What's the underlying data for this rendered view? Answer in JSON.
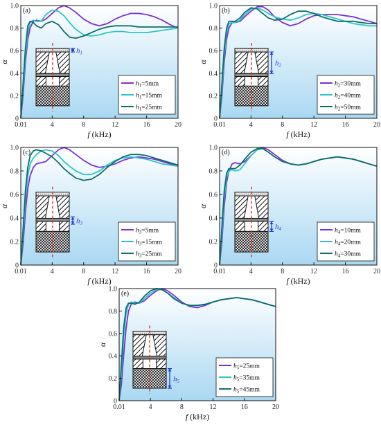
{
  "chart_data": [
    {
      "panel": "(a)",
      "type": "line",
      "xlabel": "f (kHz)",
      "ylabel": "α",
      "xlim": [
        0.01,
        20
      ],
      "ylim": [
        0,
        1.0
      ],
      "xticks": [
        "0.01",
        "4",
        "8",
        "12",
        "16",
        "20"
      ],
      "yticks": [
        "0",
        "0.2",
        "0.4",
        "0.6",
        "0.8",
        "1.0"
      ],
      "inset_label": "h1",
      "legend_placement": "bottom-right",
      "series": [
        {
          "name": "h1=5mm",
          "color": "#7a2fd6",
          "x": [
            0.01,
            0.3,
            0.6,
            0.9,
            1.2,
            1.6,
            2.0,
            2.6,
            3.2,
            4.0,
            4.8,
            5.5,
            6.2,
            7.0,
            8.0,
            9.0,
            10.0,
            11.0,
            12.0,
            13.0,
            14.0,
            15.0,
            16.0,
            17.0,
            18.0,
            19.0,
            20.0
          ],
          "y": [
            0.0,
            0.2,
            0.5,
            0.7,
            0.8,
            0.86,
            0.87,
            0.86,
            0.88,
            0.93,
            0.98,
            1.0,
            0.98,
            0.94,
            0.88,
            0.84,
            0.82,
            0.84,
            0.88,
            0.91,
            0.93,
            0.93,
            0.92,
            0.9,
            0.87,
            0.83,
            0.8
          ]
        },
        {
          "name": "h1=15mm",
          "color": "#2ec4c4",
          "x": [
            0.01,
            0.3,
            0.6,
            0.9,
            1.2,
            1.6,
            2.0,
            2.6,
            3.2,
            4.0,
            4.8,
            5.5,
            6.2,
            7.0,
            8.0,
            9.0,
            10.0,
            11.0,
            12.0,
            13.0,
            14.0,
            15.0,
            16.0,
            17.0,
            18.0,
            19.0,
            20.0
          ],
          "y": [
            0.0,
            0.25,
            0.55,
            0.76,
            0.85,
            0.87,
            0.86,
            0.86,
            0.92,
            0.96,
            0.95,
            0.91,
            0.85,
            0.79,
            0.74,
            0.73,
            0.74,
            0.76,
            0.77,
            0.77,
            0.76,
            0.76,
            0.76,
            0.77,
            0.78,
            0.79,
            0.8
          ]
        },
        {
          "name": "h1=25mm",
          "color": "#0e6e6a",
          "x": [
            0.01,
            0.3,
            0.6,
            0.9,
            1.2,
            1.6,
            2.0,
            2.6,
            3.2,
            4.0,
            4.8,
            5.5,
            6.2,
            7.0,
            8.0,
            9.0,
            10.0,
            11.0,
            12.0,
            13.0,
            14.0,
            15.0,
            16.0,
            17.0,
            18.0,
            19.0,
            20.0
          ],
          "y": [
            0.0,
            0.3,
            0.62,
            0.82,
            0.86,
            0.85,
            0.82,
            0.8,
            0.84,
            0.86,
            0.83,
            0.77,
            0.72,
            0.71,
            0.73,
            0.76,
            0.79,
            0.81,
            0.82,
            0.82,
            0.82,
            0.81,
            0.81,
            0.81,
            0.81,
            0.81,
            0.81
          ]
        }
      ]
    },
    {
      "panel": "(b)",
      "type": "line",
      "xlabel": "f (kHz)",
      "ylabel": "α",
      "xlim": [
        0.01,
        20
      ],
      "ylim": [
        0,
        1.0
      ],
      "xticks": [
        "0.01",
        "4",
        "8",
        "12",
        "16",
        "20"
      ],
      "yticks": [
        "0",
        "0.2",
        "0.4",
        "0.6",
        "0.8",
        "1.0"
      ],
      "inset_label": "h2",
      "legend_placement": "bottom-right",
      "series": [
        {
          "name": "h2=30mm",
          "color": "#7a2fd6",
          "x": [
            0.01,
            0.3,
            0.6,
            0.9,
            1.2,
            1.6,
            2.0,
            2.6,
            3.2,
            4.0,
            4.8,
            5.5,
            6.2,
            7.0,
            8.0,
            9.0,
            10.0,
            11.0,
            12.0,
            13.0,
            14.0,
            15.0,
            16.0,
            17.0,
            18.0,
            19.0,
            20.0
          ],
          "y": [
            0.0,
            0.2,
            0.5,
            0.7,
            0.8,
            0.85,
            0.85,
            0.86,
            0.9,
            0.95,
            0.99,
            0.99,
            0.96,
            0.9,
            0.85,
            0.82,
            0.84,
            0.88,
            0.91,
            0.92,
            0.92,
            0.92,
            0.91,
            0.9,
            0.88,
            0.86,
            0.84
          ]
        },
        {
          "name": "h2=40mm",
          "color": "#2ec4c4",
          "x": [
            0.01,
            0.3,
            0.6,
            0.9,
            1.2,
            1.6,
            2.0,
            2.6,
            3.2,
            4.0,
            4.8,
            5.5,
            6.2,
            7.0,
            8.0,
            9.0,
            10.0,
            11.0,
            12.0,
            13.0,
            14.0,
            15.0,
            16.0,
            17.0,
            18.0,
            19.0,
            20.0
          ],
          "y": [
            0.0,
            0.25,
            0.56,
            0.76,
            0.84,
            0.85,
            0.85,
            0.87,
            0.92,
            0.97,
            0.98,
            0.96,
            0.93,
            0.9,
            0.88,
            0.87,
            0.89,
            0.92,
            0.93,
            0.92,
            0.9,
            0.88,
            0.86,
            0.84,
            0.83,
            0.82,
            0.82
          ]
        },
        {
          "name": "h2=50mm",
          "color": "#0e6e6a",
          "x": [
            0.01,
            0.3,
            0.6,
            0.9,
            1.2,
            1.6,
            2.0,
            2.6,
            3.2,
            4.0,
            4.8,
            5.5,
            6.2,
            7.0,
            8.0,
            9.0,
            10.0,
            11.0,
            12.0,
            13.0,
            14.0,
            15.0,
            16.0,
            17.0,
            18.0,
            19.0,
            20.0
          ],
          "y": [
            0.0,
            0.3,
            0.62,
            0.8,
            0.86,
            0.86,
            0.86,
            0.89,
            0.94,
            0.98,
            0.97,
            0.93,
            0.89,
            0.87,
            0.88,
            0.92,
            0.95,
            0.95,
            0.93,
            0.9,
            0.88,
            0.86,
            0.86,
            0.86,
            0.85,
            0.84,
            0.84
          ]
        }
      ]
    },
    {
      "panel": "(c)",
      "type": "line",
      "xlabel": "f (kHz)",
      "ylabel": "α",
      "xlim": [
        0.01,
        20
      ],
      "ylim": [
        0,
        1.0
      ],
      "xticks": [
        "0.01",
        "4",
        "8",
        "12",
        "16",
        "20"
      ],
      "yticks": [
        "0",
        "0.2",
        "0.4",
        "0.6",
        "0.8",
        "1.0"
      ],
      "inset_label": "h3",
      "legend_placement": "bottom-right",
      "series": [
        {
          "name": "h3=5mm",
          "color": "#7a2fd6",
          "x": [
            0.01,
            0.3,
            0.6,
            0.9,
            1.2,
            1.6,
            2.0,
            2.6,
            3.2,
            4.0,
            4.8,
            5.5,
            6.2,
            7.0,
            8.0,
            9.0,
            10.0,
            11.0,
            12.0,
            13.0,
            14.0,
            15.0,
            16.0,
            17.0,
            18.0,
            19.0,
            20.0
          ],
          "y": [
            0.0,
            0.18,
            0.45,
            0.65,
            0.76,
            0.83,
            0.86,
            0.87,
            0.88,
            0.93,
            0.98,
            1.0,
            0.98,
            0.94,
            0.89,
            0.85,
            0.83,
            0.84,
            0.86,
            0.89,
            0.91,
            0.92,
            0.91,
            0.9,
            0.88,
            0.86,
            0.84
          ]
        },
        {
          "name": "h3=15mm",
          "color": "#2ec4c4",
          "x": [
            0.01,
            0.3,
            0.6,
            0.9,
            1.2,
            1.6,
            2.0,
            2.6,
            3.2,
            4.0,
            4.8,
            5.5,
            6.2,
            7.0,
            8.0,
            9.0,
            10.0,
            11.0,
            12.0,
            13.0,
            14.0,
            15.0,
            16.0,
            17.0,
            18.0,
            19.0,
            20.0
          ],
          "y": [
            0.0,
            0.25,
            0.55,
            0.76,
            0.86,
            0.91,
            0.94,
            0.97,
            0.98,
            0.97,
            0.93,
            0.88,
            0.84,
            0.8,
            0.77,
            0.77,
            0.8,
            0.85,
            0.89,
            0.91,
            0.92,
            0.91,
            0.9,
            0.88,
            0.86,
            0.85,
            0.84
          ]
        },
        {
          "name": "h3=25mm",
          "color": "#0e6e6a",
          "x": [
            0.01,
            0.3,
            0.6,
            0.9,
            1.2,
            1.6,
            2.0,
            2.6,
            3.2,
            4.0,
            4.8,
            5.5,
            6.2,
            7.0,
            8.0,
            9.0,
            10.0,
            11.0,
            12.0,
            13.0,
            14.0,
            15.0,
            16.0,
            17.0,
            18.0,
            19.0,
            20.0
          ],
          "y": [
            0.0,
            0.3,
            0.63,
            0.83,
            0.93,
            0.97,
            0.98,
            0.97,
            0.95,
            0.92,
            0.87,
            0.82,
            0.78,
            0.74,
            0.72,
            0.73,
            0.77,
            0.83,
            0.88,
            0.92,
            0.94,
            0.94,
            0.93,
            0.91,
            0.89,
            0.87,
            0.85
          ]
        }
      ]
    },
    {
      "panel": "(d)",
      "type": "line",
      "xlabel": "f (kHz)",
      "ylabel": "α",
      "xlim": [
        0.01,
        20
      ],
      "ylim": [
        0,
        1.0
      ],
      "xticks": [
        "0.01",
        "4",
        "8",
        "12",
        "16",
        "20"
      ],
      "yticks": [
        "0",
        "0.2",
        "0.4",
        "0.6",
        "0.8",
        "1.0"
      ],
      "inset_label": "h4",
      "legend_placement": "bottom-right",
      "series": [
        {
          "name": "h4=10mm",
          "color": "#7a2fd6",
          "x": [
            0.01,
            0.3,
            0.6,
            0.9,
            1.2,
            1.6,
            2.0,
            2.6,
            3.2,
            4.0,
            4.8,
            5.5,
            6.2,
            7.0,
            8.0,
            9.0,
            10.0,
            11.0,
            12.0,
            13.0,
            14.0,
            15.0,
            16.0,
            17.0,
            18.0,
            19.0,
            20.0
          ],
          "y": [
            0.0,
            0.2,
            0.5,
            0.7,
            0.8,
            0.86,
            0.87,
            0.86,
            0.88,
            0.93,
            0.98,
            1.0,
            0.98,
            0.94,
            0.89,
            0.86,
            0.85,
            0.86,
            0.88,
            0.9,
            0.91,
            0.92,
            0.91,
            0.9,
            0.88,
            0.86,
            0.84
          ]
        },
        {
          "name": "h4=20mm",
          "color": "#2ec4c4",
          "x": [
            0.01,
            0.3,
            0.6,
            0.9,
            1.2,
            1.6,
            2.0,
            2.6,
            3.2,
            4.0,
            4.8,
            5.5,
            6.2,
            7.0,
            8.0,
            9.0,
            10.0,
            11.0,
            12.0,
            13.0,
            14.0,
            15.0,
            16.0,
            17.0,
            18.0,
            19.0,
            20.0
          ],
          "y": [
            0.0,
            0.26,
            0.57,
            0.74,
            0.8,
            0.81,
            0.8,
            0.81,
            0.86,
            0.93,
            0.98,
            0.99,
            0.96,
            0.92,
            0.88,
            0.86,
            0.85,
            0.86,
            0.88,
            0.9,
            0.91,
            0.92,
            0.91,
            0.9,
            0.88,
            0.86,
            0.84
          ]
        },
        {
          "name": "h4=30mm",
          "color": "#0e6e6a",
          "x": [
            0.01,
            0.3,
            0.6,
            0.9,
            1.2,
            1.6,
            2.0,
            2.6,
            3.2,
            4.0,
            4.8,
            5.5,
            6.2,
            7.0,
            8.0,
            9.0,
            10.0,
            11.0,
            12.0,
            13.0,
            14.0,
            15.0,
            16.0,
            17.0,
            18.0,
            19.0,
            20.0
          ],
          "y": [
            0.0,
            0.32,
            0.63,
            0.78,
            0.82,
            0.82,
            0.82,
            0.85,
            0.9,
            0.96,
            0.99,
            0.99,
            0.96,
            0.92,
            0.88,
            0.86,
            0.85,
            0.86,
            0.88,
            0.9,
            0.91,
            0.92,
            0.91,
            0.9,
            0.88,
            0.86,
            0.84
          ]
        }
      ]
    },
    {
      "panel": "(e)",
      "type": "line",
      "xlabel": "f (kHz)",
      "ylabel": "α",
      "xlim": [
        0.01,
        20
      ],
      "ylim": [
        0,
        1.0
      ],
      "xticks": [
        "0.01",
        "4",
        "8",
        "12",
        "16",
        "20"
      ],
      "yticks": [
        "0",
        "0.2",
        "0.4",
        "0.6",
        "0.8",
        "1.0"
      ],
      "inset_label": "h5",
      "legend_placement": "bottom-right",
      "series": [
        {
          "name": "h5=25mm",
          "color": "#7a2fd6",
          "x": [
            0.01,
            0.3,
            0.6,
            0.9,
            1.2,
            1.6,
            2.0,
            2.6,
            3.2,
            4.0,
            4.8,
            5.5,
            6.2,
            7.0,
            8.0,
            9.0,
            10.0,
            11.0,
            12.0,
            13.0,
            14.0,
            15.0,
            16.0,
            17.0,
            18.0,
            19.0,
            20.0
          ],
          "y": [
            0.0,
            0.15,
            0.42,
            0.65,
            0.8,
            0.87,
            0.88,
            0.87,
            0.89,
            0.94,
            0.98,
            1.0,
            0.98,
            0.94,
            0.88,
            0.84,
            0.83,
            0.85,
            0.88,
            0.9,
            0.91,
            0.92,
            0.91,
            0.9,
            0.88,
            0.86,
            0.84
          ]
        },
        {
          "name": "h5=35mm",
          "color": "#2ec4c4",
          "x": [
            0.01,
            0.3,
            0.6,
            0.9,
            1.2,
            1.6,
            2.0,
            2.6,
            3.2,
            4.0,
            4.8,
            5.5,
            6.2,
            7.0,
            8.0,
            9.0,
            10.0,
            11.0,
            12.0,
            13.0,
            14.0,
            15.0,
            16.0,
            17.0,
            18.0,
            19.0,
            20.0
          ],
          "y": [
            0.0,
            0.25,
            0.58,
            0.78,
            0.86,
            0.88,
            0.87,
            0.87,
            0.91,
            0.96,
            0.99,
            0.99,
            0.96,
            0.92,
            0.87,
            0.85,
            0.85,
            0.86,
            0.88,
            0.9,
            0.91,
            0.92,
            0.91,
            0.9,
            0.88,
            0.86,
            0.84
          ]
        },
        {
          "name": "h5=45mm",
          "color": "#0e6e6a",
          "x": [
            0.01,
            0.3,
            0.6,
            0.9,
            1.2,
            1.6,
            2.0,
            2.6,
            3.2,
            4.0,
            4.8,
            5.5,
            6.2,
            7.0,
            8.0,
            9.0,
            10.0,
            11.0,
            12.0,
            13.0,
            14.0,
            15.0,
            16.0,
            17.0,
            18.0,
            19.0,
            20.0
          ],
          "y": [
            0.0,
            0.33,
            0.66,
            0.83,
            0.87,
            0.87,
            0.86,
            0.88,
            0.93,
            0.98,
            1.0,
            0.99,
            0.96,
            0.91,
            0.87,
            0.85,
            0.85,
            0.86,
            0.88,
            0.9,
            0.91,
            0.92,
            0.91,
            0.9,
            0.88,
            0.86,
            0.84
          ]
        }
      ]
    }
  ]
}
